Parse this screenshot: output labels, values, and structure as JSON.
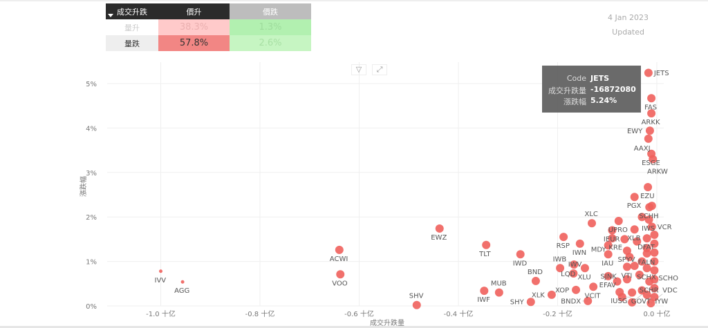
{
  "matrix": {
    "corner": "成交升跌",
    "col1": "價升",
    "col2": "價跌",
    "rows": [
      {
        "label": "量升",
        "c1": "38.3%",
        "c2": "1.3%"
      },
      {
        "label": "量跌",
        "c1": "57.8%",
        "c2": "2.6%"
      }
    ]
  },
  "header": {
    "date": "4 Jan 2023",
    "updated": "Updated"
  },
  "toolbar": {
    "filter_icon": "filter-icon",
    "focus_icon": "focus-mode-icon"
  },
  "tooltip": {
    "k1": "Code",
    "v1": "JETS",
    "k2": "成交升跌量",
    "v2": "-16872080",
    "k3": "漲跌幅",
    "v3": "5.24%"
  },
  "chart_data": {
    "type": "scatter",
    "xlabel": "成交升跌量",
    "ylabel": "漲跌幅",
    "xlim": [
      -1.13,
      0.0
    ],
    "ylim": [
      0,
      5.5
    ],
    "xticks": [
      {
        "v": -1.0,
        "label": "-1.0 十亿"
      },
      {
        "v": -0.8,
        "label": "-0.8 十亿"
      },
      {
        "v": -0.6,
        "label": "-0.6 十亿"
      },
      {
        "v": -0.4,
        "label": "-0.4 十亿"
      },
      {
        "v": -0.2,
        "label": "-0.2 十亿"
      },
      {
        "v": 0.0,
        "label": "0.0 十亿"
      }
    ],
    "yticks": [
      {
        "v": 0,
        "label": "0%"
      },
      {
        "v": 1,
        "label": "1%"
      },
      {
        "v": 2,
        "label": "2%"
      },
      {
        "v": 3,
        "label": "3%"
      },
      {
        "v": 4,
        "label": "4%"
      },
      {
        "v": 5,
        "label": "5%"
      }
    ],
    "color": "#f0605c",
    "points": [
      {
        "code": "JETS",
        "x": -0.0169,
        "y": 5.24,
        "lp": "left"
      },
      {
        "code": "FAS",
        "x": -0.011,
        "y": 4.67,
        "lp": "left"
      },
      {
        "code": "ARKK",
        "x": -0.011,
        "y": 4.33,
        "lp": "left"
      },
      {
        "code": "EWY",
        "x": -0.014,
        "y": 3.94,
        "lp": "left"
      },
      {
        "code": "AAXJ",
        "x": -0.017,
        "y": 3.76,
        "lp": "belowleft"
      },
      {
        "code": "ESGE",
        "x": -0.011,
        "y": 3.42,
        "lp": "left"
      },
      {
        "code": "ARKW",
        "x": -0.008,
        "y": 3.3,
        "lp": "belowleft"
      },
      {
        "code": "EZU",
        "x": -0.018,
        "y": 2.67,
        "lp": "below"
      },
      {
        "code": "PGX",
        "x": -0.045,
        "y": 2.45,
        "lp": "none"
      },
      {
        "code": "SCHH",
        "x": -0.015,
        "y": 2.22,
        "lp": "left"
      },
      {
        "code": "IWS",
        "x": -0.016,
        "y": 1.94,
        "lp": "left"
      },
      {
        "code": "UPRO",
        "x": -0.077,
        "y": 1.91,
        "lp": "right"
      },
      {
        "code": "XLC",
        "x": -0.131,
        "y": 1.86,
        "lp": "above"
      },
      {
        "code": "IEUR",
        "x": -0.09,
        "y": 1.7,
        "lp": "none"
      },
      {
        "code": "XLB",
        "x": -0.045,
        "y": 1.72,
        "lp": "right"
      },
      {
        "code": "VCR",
        "x": -0.01,
        "y": 1.78,
        "lp": "left"
      },
      {
        "code": "KRE",
        "x": -0.09,
        "y": 1.52,
        "lp": "right"
      },
      {
        "code": "DFAT",
        "x": -0.02,
        "y": 1.52,
        "lp": "left"
      },
      {
        "code": "RSP",
        "x": -0.188,
        "y": 1.55,
        "lp": "below"
      },
      {
        "code": "IWN",
        "x": -0.155,
        "y": 1.4,
        "lp": "below"
      },
      {
        "code": "MDY",
        "x": -0.098,
        "y": 1.36,
        "lp": "left"
      },
      {
        "code": "SPYV",
        "x": -0.06,
        "y": 1.24,
        "lp": "right"
      },
      {
        "code": "FALN",
        "x": -0.02,
        "y": 1.18,
        "lp": "left"
      },
      {
        "code": "IAU",
        "x": -0.098,
        "y": 1.16,
        "lp": "left"
      },
      {
        "code": "IWB",
        "x": -0.195,
        "y": 0.85,
        "lp": "above"
      },
      {
        "code": "LQD",
        "x": -0.167,
        "y": 0.93,
        "lp": "belowleft"
      },
      {
        "code": "XLU",
        "x": -0.145,
        "y": 0.85,
        "lp": "right"
      },
      {
        "code": "IWV",
        "x": -0.168,
        "y": 0.73,
        "lp": "below"
      },
      {
        "code": "EFAV",
        "x": -0.098,
        "y": 0.67,
        "lp": "left"
      },
      {
        "code": "VTI",
        "x": -0.06,
        "y": 0.88,
        "lp": "right"
      },
      {
        "code": "SCHX",
        "x": -0.02,
        "y": 0.85,
        "lp": "left"
      },
      {
        "code": "SJNK",
        "x": -0.08,
        "y": 0.55,
        "lp": "right"
      },
      {
        "code": "SCHR",
        "x": -0.015,
        "y": 0.55,
        "lp": "left"
      },
      {
        "code": "VCIT",
        "x": -0.128,
        "y": 0.43,
        "lp": "right"
      },
      {
        "code": "XOP",
        "x": -0.163,
        "y": 0.36,
        "lp": "left"
      },
      {
        "code": "BNDX",
        "x": -0.139,
        "y": 0.11,
        "lp": "above"
      },
      {
        "code": "IUSG",
        "x": -0.075,
        "y": 0.31,
        "lp": "left"
      },
      {
        "code": "GOVT",
        "x": -0.07,
        "y": 0.2,
        "lp": "right"
      },
      {
        "code": "IYW",
        "x": -0.02,
        "y": 0.25,
        "lp": "left"
      },
      {
        "code": "SCHO",
        "x": -0.05,
        "y": 0.08,
        "lp": "right"
      },
      {
        "code": "VDC",
        "x": -0.012,
        "y": 0.06,
        "lp": "left"
      },
      {
        "code": "ACWI",
        "x": -0.64,
        "y": 1.26,
        "lp": "below"
      },
      {
        "code": "VOO",
        "x": -0.638,
        "y": 0.71,
        "lp": "below"
      },
      {
        "code": "IVV",
        "x": -1.0,
        "y": 0.78,
        "lp": "below",
        "small": true
      },
      {
        "code": "AGG",
        "x": -0.956,
        "y": 0.54,
        "lp": "below",
        "small": true
      },
      {
        "code": "SHV",
        "x": -0.484,
        "y": 0.02,
        "lp": "above"
      },
      {
        "code": "EWZ",
        "x": -0.438,
        "y": 1.74,
        "lp": "below"
      },
      {
        "code": "TLT",
        "x": -0.344,
        "y": 1.37,
        "lp": "below"
      },
      {
        "code": "IWD",
        "x": -0.275,
        "y": 1.16,
        "lp": "below"
      },
      {
        "code": "BND",
        "x": -0.244,
        "y": 0.56,
        "lp": "above"
      },
      {
        "code": "IWF",
        "x": -0.348,
        "y": 0.34,
        "lp": "below"
      },
      {
        "code": "MUB",
        "x": -0.318,
        "y": 0.3,
        "lp": "below"
      },
      {
        "code": "SHY",
        "x": -0.254,
        "y": 0.09,
        "lp": "left"
      },
      {
        "code": "XLK",
        "x": -0.212,
        "y": 0.25,
        "lp": "left"
      },
      {
        "code": "",
        "x": -0.005,
        "y": 1.6,
        "lp": "none"
      },
      {
        "code": "",
        "x": -0.005,
        "y": 1.4,
        "lp": "none"
      },
      {
        "code": "",
        "x": -0.005,
        "y": 1.2,
        "lp": "none"
      },
      {
        "code": "",
        "x": -0.005,
        "y": 1.0,
        "lp": "none"
      },
      {
        "code": "",
        "x": -0.005,
        "y": 0.8,
        "lp": "none"
      },
      {
        "code": "",
        "x": -0.005,
        "y": 0.6,
        "lp": "none"
      },
      {
        "code": "",
        "x": -0.005,
        "y": 0.4,
        "lp": "none"
      },
      {
        "code": "",
        "x": -0.005,
        "y": 0.2,
        "lp": "none"
      },
      {
        "code": "",
        "x": -0.02,
        "y": 1.3,
        "lp": "none"
      },
      {
        "code": "",
        "x": -0.03,
        "y": 1.0,
        "lp": "none"
      },
      {
        "code": "",
        "x": -0.035,
        "y": 0.7,
        "lp": "none"
      },
      {
        "code": "",
        "x": -0.03,
        "y": 0.35,
        "lp": "none"
      },
      {
        "code": "",
        "x": -0.04,
        "y": 1.45,
        "lp": "none"
      },
      {
        "code": "",
        "x": -0.055,
        "y": 1.1,
        "lp": "none"
      },
      {
        "code": "",
        "x": -0.05,
        "y": 0.3,
        "lp": "none"
      },
      {
        "code": "",
        "x": -0.045,
        "y": 0.9,
        "lp": "none"
      },
      {
        "code": "",
        "x": -0.065,
        "y": 1.5,
        "lp": "none"
      },
      {
        "code": "",
        "x": -0.03,
        "y": 2.0,
        "lp": "none"
      },
      {
        "code": "",
        "x": -0.01,
        "y": 2.25,
        "lp": "none"
      },
      {
        "code": "",
        "x": -0.06,
        "y": 0.6,
        "lp": "none"
      }
    ]
  }
}
